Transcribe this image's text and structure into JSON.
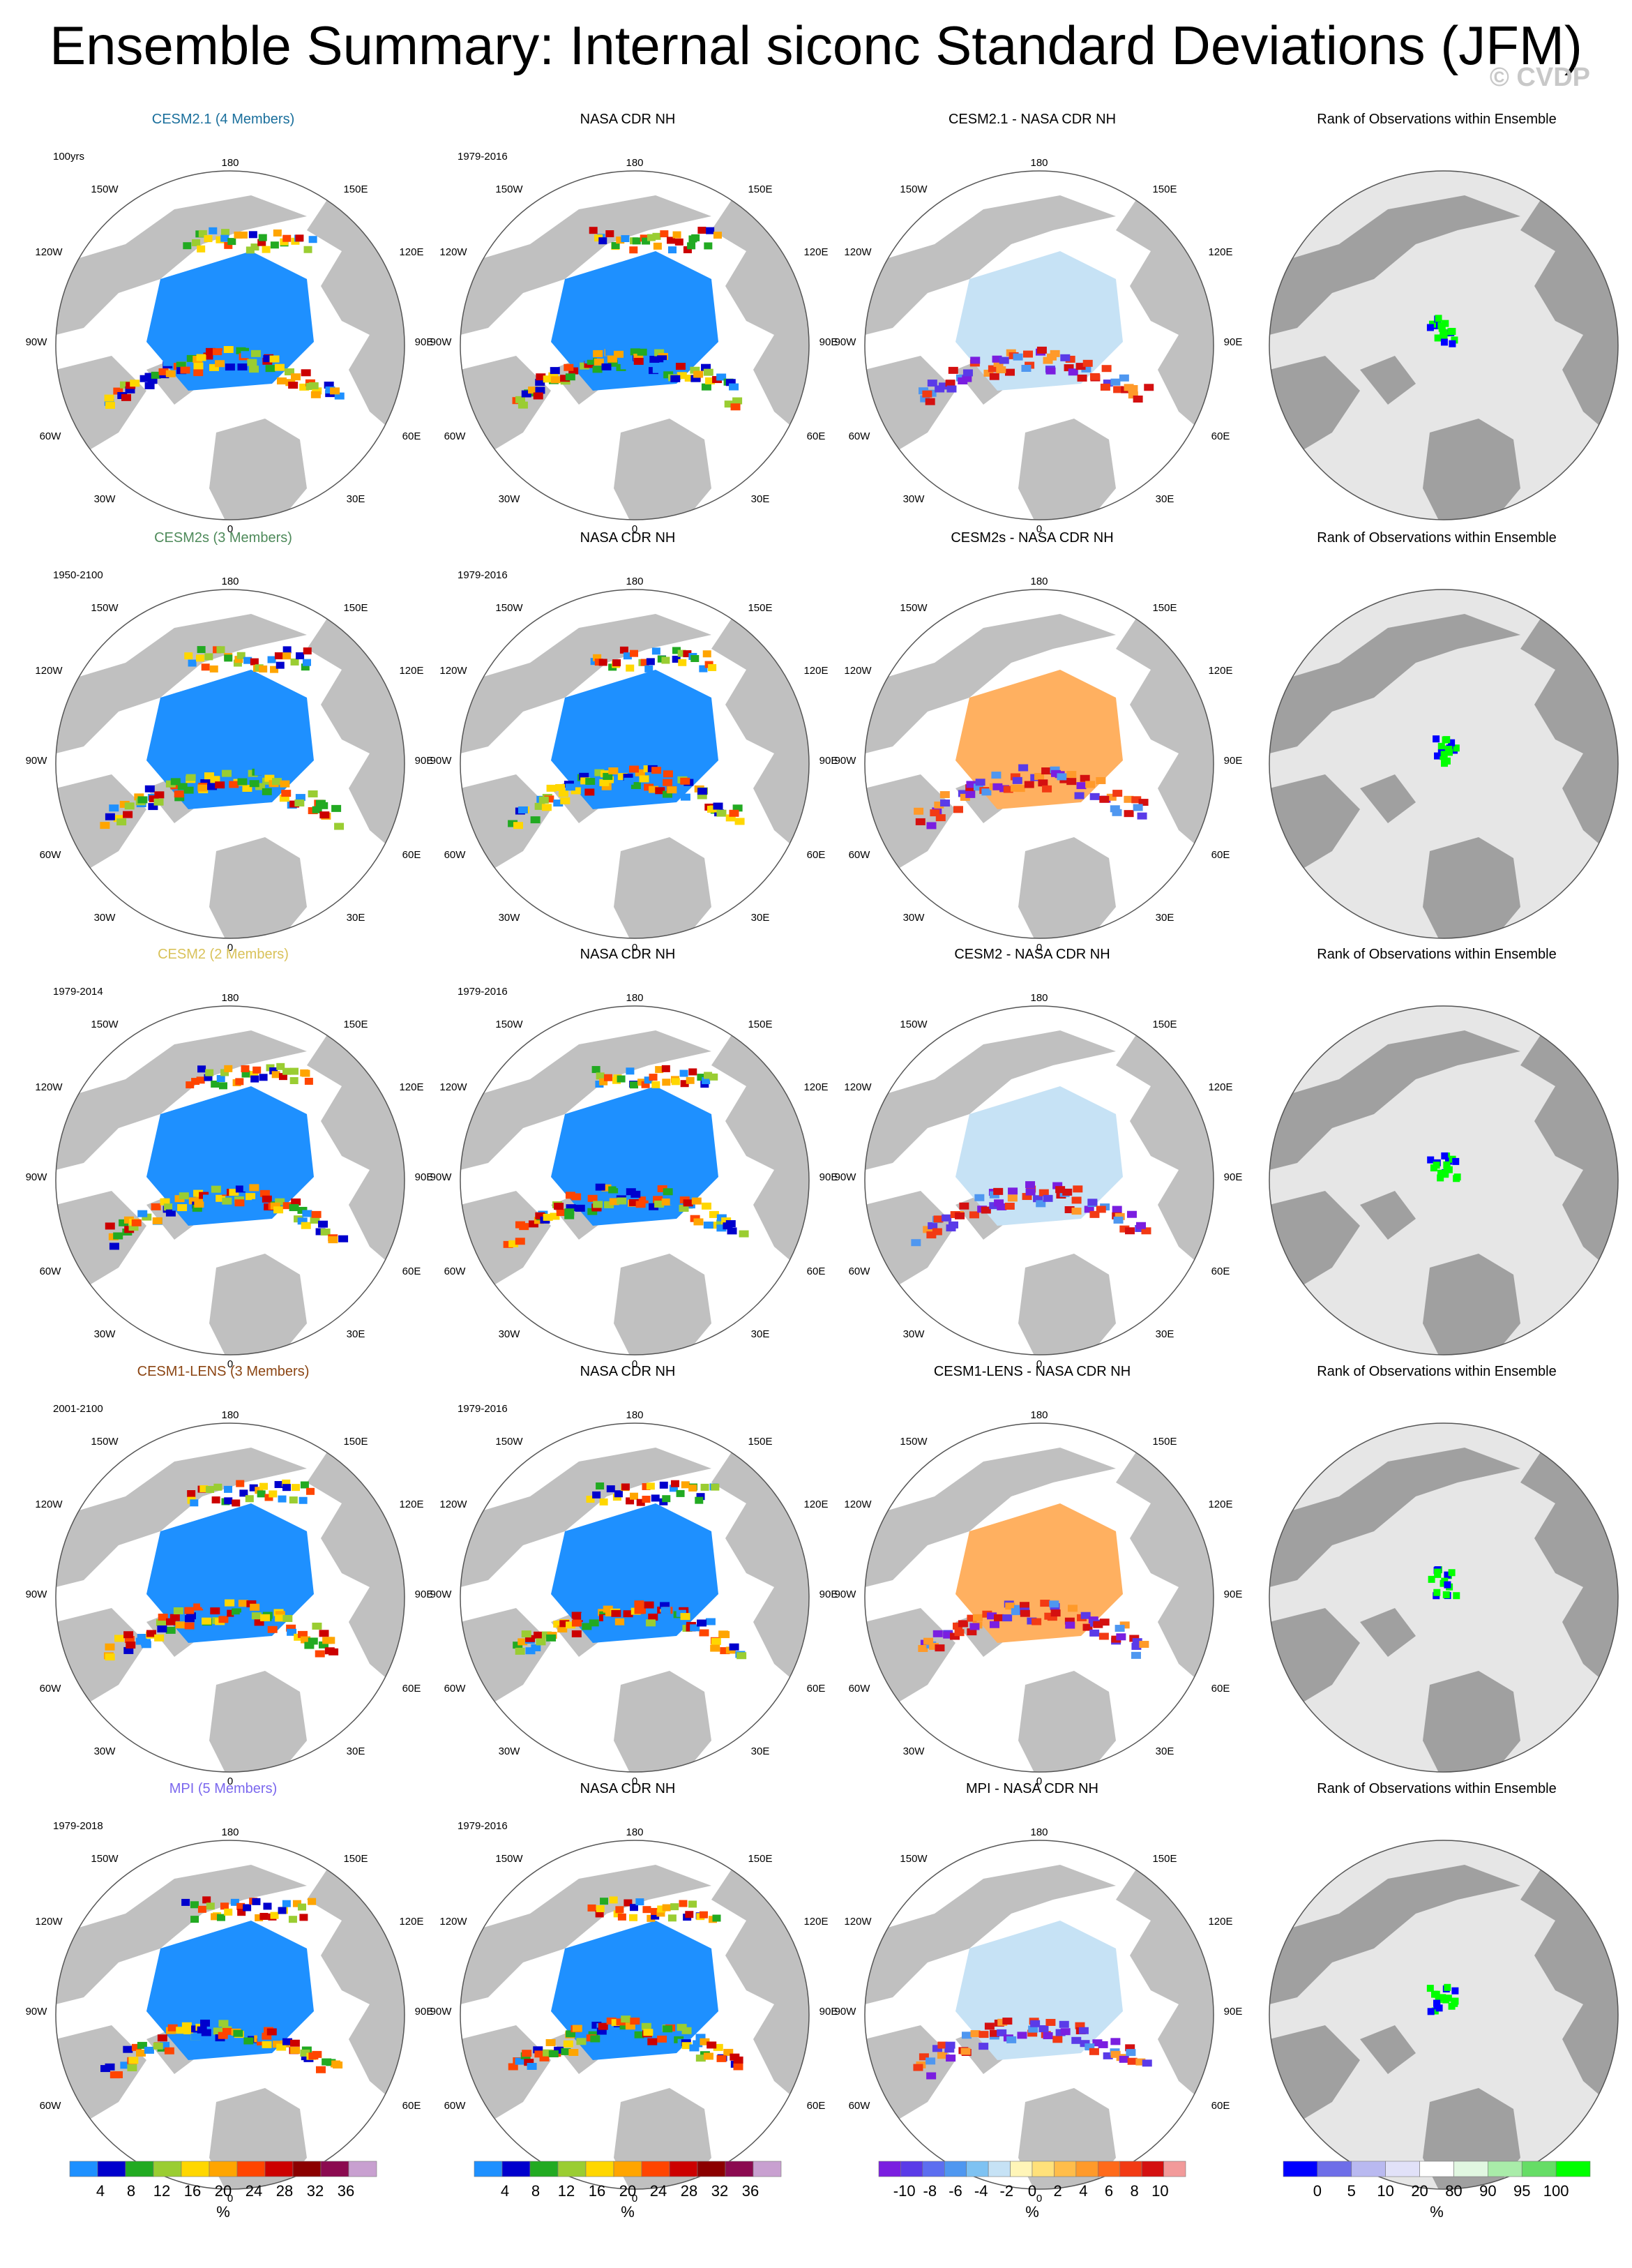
{
  "title": "Ensemble Summary: Internal siconc Standard Deviations (JFM)",
  "watermark": "© CVDP",
  "rows": [
    {
      "model": "CESM2.1 (4 Members)",
      "model_color": "#1a6f9c",
      "model_period": "100yrs",
      "obs": "NASA CDR NH",
      "obs_period": "1979-2016",
      "diff": "CESM2.1 - NASA CDR NH",
      "rank": "Rank of Observations within Ensemble"
    },
    {
      "model": "CESM2s (3 Members)",
      "model_color": "#4e8a5a",
      "model_period": "1950-2100",
      "obs": "NASA CDR NH",
      "obs_period": "1979-2016",
      "diff": "CESM2s - NASA CDR NH",
      "rank": "Rank of Observations within Ensemble"
    },
    {
      "model": "CESM2 (2 Members)",
      "model_color": "#d9c25a",
      "model_period": "1979-2014",
      "obs": "NASA CDR NH",
      "obs_period": "1979-2016",
      "diff": "CESM2 - NASA CDR NH",
      "rank": "Rank of Observations within Ensemble"
    },
    {
      "model": "CESM1-LENS (3 Members)",
      "model_color": "#8b4513",
      "model_period": "2001-2100",
      "obs": "NASA CDR NH",
      "obs_period": "1979-2016",
      "diff": "CESM1-LENS - NASA CDR NH",
      "rank": "Rank of Observations within Ensemble"
    },
    {
      "model": "MPI (5 Members)",
      "model_color": "#7b68ee",
      "model_period": "1979-2018",
      "obs": "NASA CDR NH",
      "obs_period": "1979-2016",
      "diff": "MPI - NASA CDR NH",
      "rank": "Rank of Observations within Ensemble"
    }
  ],
  "map_labels": {
    "top": "180",
    "bottom": "0",
    "upper_left": "150W",
    "upper_right": "150E",
    "mid_upper_left": "120W",
    "mid_upper_right": "120E",
    "left": "90W",
    "right": "90E",
    "mid_lower_left": "60W",
    "mid_lower_right": "60E",
    "lower_left": "30W",
    "lower_right": "30E"
  },
  "chart_data": [
    {
      "type": "heatmap",
      "id": "stddev_colorbar",
      "unit_label": "%",
      "tick_labels": [
        "4",
        "8",
        "12",
        "16",
        "20",
        "24",
        "28",
        "32",
        "36"
      ],
      "colors": [
        "#1e90ff",
        "#0000cd",
        "#22aa22",
        "#9acd32",
        "#ffd700",
        "#ffa500",
        "#ff4500",
        "#cc0000",
        "#8b0000",
        "#8b0a50",
        "#c8a0d0"
      ]
    },
    {
      "type": "heatmap",
      "id": "stddev_colorbar_obs",
      "unit_label": "%",
      "tick_labels": [
        "4",
        "8",
        "12",
        "16",
        "20",
        "24",
        "28",
        "32",
        "36"
      ],
      "colors": [
        "#1e90ff",
        "#0000cd",
        "#22aa22",
        "#9acd32",
        "#ffd700",
        "#ffa500",
        "#ff4500",
        "#cc0000",
        "#8b0000",
        "#8b0a50",
        "#c8a0d0"
      ]
    },
    {
      "type": "heatmap",
      "id": "difference_colorbar",
      "unit_label": "%",
      "tick_labels": [
        "-10",
        "-8",
        "-6",
        "-4",
        "-2",
        "0",
        "2",
        "4",
        "6",
        "8",
        "10"
      ],
      "colors": [
        "#7a1ee0",
        "#5a3be8",
        "#5c6ef0",
        "#4f97f0",
        "#7ec2f2",
        "#c6e2f5",
        "#fff5b8",
        "#ffe17a",
        "#ffbd4a",
        "#ff9a2a",
        "#ff6a1a",
        "#f23a14",
        "#d41010",
        "#f29a9a"
      ]
    },
    {
      "type": "heatmap",
      "id": "rank_colorbar",
      "unit_label": "%",
      "tick_labels": [
        "0",
        "5",
        "10",
        "20",
        "80",
        "90",
        "95",
        "100"
      ],
      "colors": [
        "#0000ff",
        "#6e6ee8",
        "#b9b9f0",
        "#e1e1f8",
        "#ffffff",
        "#e1f7e1",
        "#a9eca9",
        "#66dd66",
        "#00ff00"
      ]
    }
  ]
}
